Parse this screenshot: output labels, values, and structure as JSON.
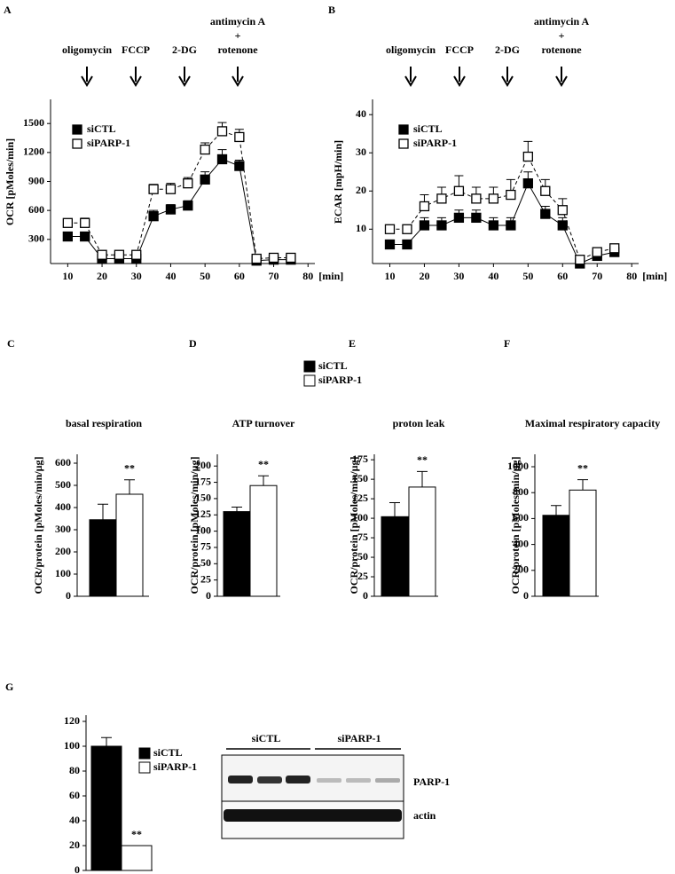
{
  "chart_data": [
    {
      "type": "line",
      "label": "A",
      "y_label": "OCR [pMoles/min]",
      "x_unit": "[min]",
      "annotations": [
        [
          "oligomycin"
        ],
        [
          "FCCP"
        ],
        [
          "2-DG"
        ],
        [
          "antimycin A",
          "+",
          "rotenone"
        ]
      ],
      "x": [
        10,
        15,
        20,
        25,
        30,
        35,
        40,
        45,
        50,
        55,
        60,
        65,
        70,
        75
      ],
      "series": [
        {
          "name": "siCTL",
          "color": "#000000",
          "marker": "filled",
          "dashed": false,
          "values": [
            330,
            330,
            100,
            100,
            100,
            540,
            610,
            650,
            920,
            1130,
            1060,
            80,
            90,
            90
          ],
          "errors": [
            30,
            40,
            20,
            20,
            20,
            60,
            50,
            50,
            80,
            100,
            60,
            20,
            20,
            20
          ]
        },
        {
          "name": "siPARP-1",
          "color": "#000000",
          "marker": "open",
          "dashed": true,
          "values": [
            470,
            470,
            140,
            140,
            140,
            820,
            820,
            880,
            1230,
            1420,
            1360,
            100,
            110,
            110
          ],
          "errors": [
            40,
            50,
            20,
            20,
            20,
            50,
            60,
            60,
            70,
            90,
            80,
            20,
            20,
            20
          ]
        }
      ],
      "xlim": [
        5,
        82
      ],
      "ylim": [
        50,
        1750
      ],
      "xticks": [
        10,
        20,
        30,
        40,
        50,
        60,
        70,
        80
      ],
      "yticks": [
        300,
        600,
        900,
        1200,
        1500
      ]
    },
    {
      "type": "line",
      "label": "B",
      "y_label": "ECAR [mpH/min]",
      "x_unit": "[min]",
      "annotations": [
        [
          "oligomycin"
        ],
        [
          "FCCP"
        ],
        [
          "2-DG"
        ],
        [
          "antimycin A",
          "+",
          "rotenone"
        ]
      ],
      "x": [
        10,
        15,
        20,
        25,
        30,
        35,
        40,
        45,
        50,
        55,
        60,
        65,
        70,
        75
      ],
      "series": [
        {
          "name": "siCTL",
          "color": "#000000",
          "marker": "filled",
          "dashed": false,
          "values": [
            6,
            6,
            11,
            11,
            13,
            13,
            11,
            11,
            22,
            14,
            11,
            1,
            3,
            4
          ],
          "errors": [
            1,
            1,
            2,
            2,
            2,
            2,
            2,
            2,
            3,
            2,
            2,
            1,
            1,
            1
          ]
        },
        {
          "name": "siPARP-1",
          "color": "#000000",
          "marker": "open",
          "dashed": true,
          "values": [
            10,
            10,
            16,
            18,
            20,
            18,
            18,
            19,
            29,
            20,
            15,
            2,
            4,
            5
          ],
          "errors": [
            1,
            1,
            3,
            3,
            4,
            3,
            3,
            4,
            4,
            3,
            3,
            1,
            1,
            1
          ]
        }
      ],
      "xlim": [
        5,
        82
      ],
      "ylim": [
        1,
        44
      ],
      "xticks": [
        10,
        20,
        30,
        40,
        50,
        60,
        70,
        80
      ],
      "yticks": [
        10,
        20,
        30,
        40
      ]
    },
    {
      "type": "bar",
      "label": "C",
      "title": "basal respiration",
      "y_label": "OCR/protein [pMoles/min/µg]",
      "annotation": "**",
      "categories": [
        null
      ],
      "series": [
        {
          "name": "siCTL",
          "color": "#000000",
          "values": [
            345
          ],
          "errors": [
            70
          ]
        },
        {
          "name": "siPARP-1",
          "color": "#ffffff",
          "values": [
            460
          ],
          "errors": [
            65
          ]
        }
      ],
      "ylim": [
        0,
        640
      ],
      "yticks": [
        0,
        100,
        200,
        300,
        400,
        500,
        600
      ]
    },
    {
      "type": "bar",
      "label": "D",
      "title": "ATP turnover",
      "y_label": "OCR/protein [pMoles/min/µg]",
      "annotation": "**",
      "categories": [
        null
      ],
      "series": [
        {
          "color": "#000000",
          "values": [
            130
          ],
          "errors": [
            7
          ]
        },
        {
          "color": "#ffffff",
          "values": [
            170
          ],
          "errors": [
            15
          ]
        }
      ],
      "ylim": [
        0,
        218
      ],
      "yticks": [
        0,
        25,
        50,
        75,
        100,
        125,
        150,
        175,
        200
      ]
    },
    {
      "type": "bar",
      "label": "E",
      "title": "proton leak",
      "y_label": "OCR/protein [pMoles/min/µg]",
      "annotation": "**",
      "categories": [
        null
      ],
      "series": [
        {
          "color": "#000000",
          "values": [
            102
          ],
          "errors": [
            18
          ]
        },
        {
          "color": "#ffffff",
          "values": [
            140
          ],
          "errors": [
            20
          ]
        }
      ],
      "ylim": [
        0,
        182
      ],
      "yticks": [
        0,
        25,
        50,
        75,
        100,
        125,
        150,
        175
      ]
    },
    {
      "type": "bar",
      "label": "F",
      "title": "Maximal respiratory capacity",
      "y_label": "OCR/protein [pMoles/min/µg]",
      "annotation": "**",
      "categories": [
        null
      ],
      "series": [
        {
          "color": "#000000",
          "values": [
            625
          ],
          "errors": [
            75
          ]
        },
        {
          "color": "#ffffff",
          "values": [
            820
          ],
          "errors": [
            80
          ]
        }
      ],
      "ylim": [
        0,
        1096
      ],
      "yticks": [
        0,
        200,
        400,
        600,
        800,
        1000
      ]
    },
    {
      "type": "bar",
      "label": "G",
      "annotation": "**",
      "categories": [
        null
      ],
      "series": [
        {
          "name": "siCTL",
          "color": "#000000",
          "values": [
            100
          ],
          "errors": [
            7
          ]
        },
        {
          "name": "siPARP-1",
          "color": "#ffffff",
          "values": [
            20
          ]
        }
      ],
      "ylim": [
        0,
        125
      ],
      "yticks": [
        0,
        20,
        40,
        60,
        80,
        100,
        120
      ]
    }
  ],
  "blot": {
    "groups": [
      "siCTL",
      "siPARP-1"
    ],
    "rows": [
      "PARP-1",
      "actin"
    ]
  }
}
